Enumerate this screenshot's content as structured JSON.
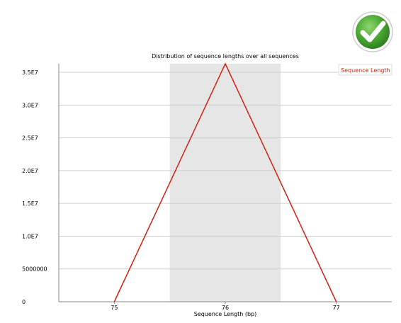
{
  "status": {
    "icon": "check-circle-icon",
    "color": "#3a9a2a"
  },
  "chart_data": {
    "type": "line",
    "title": "Distribution of sequence lengths over all sequences",
    "xlabel": "Sequence Length (bp)",
    "ylabel": "",
    "x": [
      75,
      76,
      77
    ],
    "x_tick_labels": [
      "75",
      "76",
      "77"
    ],
    "xlim": [
      74.5,
      77.5
    ],
    "ylim": [
      0,
      36300000
    ],
    "y_ticks": [
      0,
      5000000,
      10000000,
      15000000,
      20000000,
      25000000,
      30000000,
      35000000
    ],
    "y_tick_labels": [
      "0",
      "5000000",
      "1.0E7",
      "1.5E7",
      "2.0E7",
      "2.5E7",
      "3.0E7",
      "3.5E7"
    ],
    "highlight_band": [
      75.5,
      76.5
    ],
    "grid": true,
    "legend_position": "top-right",
    "series": [
      {
        "name": "Sequence Length",
        "color": "#cc2211",
        "values": [
          0,
          36300000,
          0
        ]
      }
    ]
  }
}
